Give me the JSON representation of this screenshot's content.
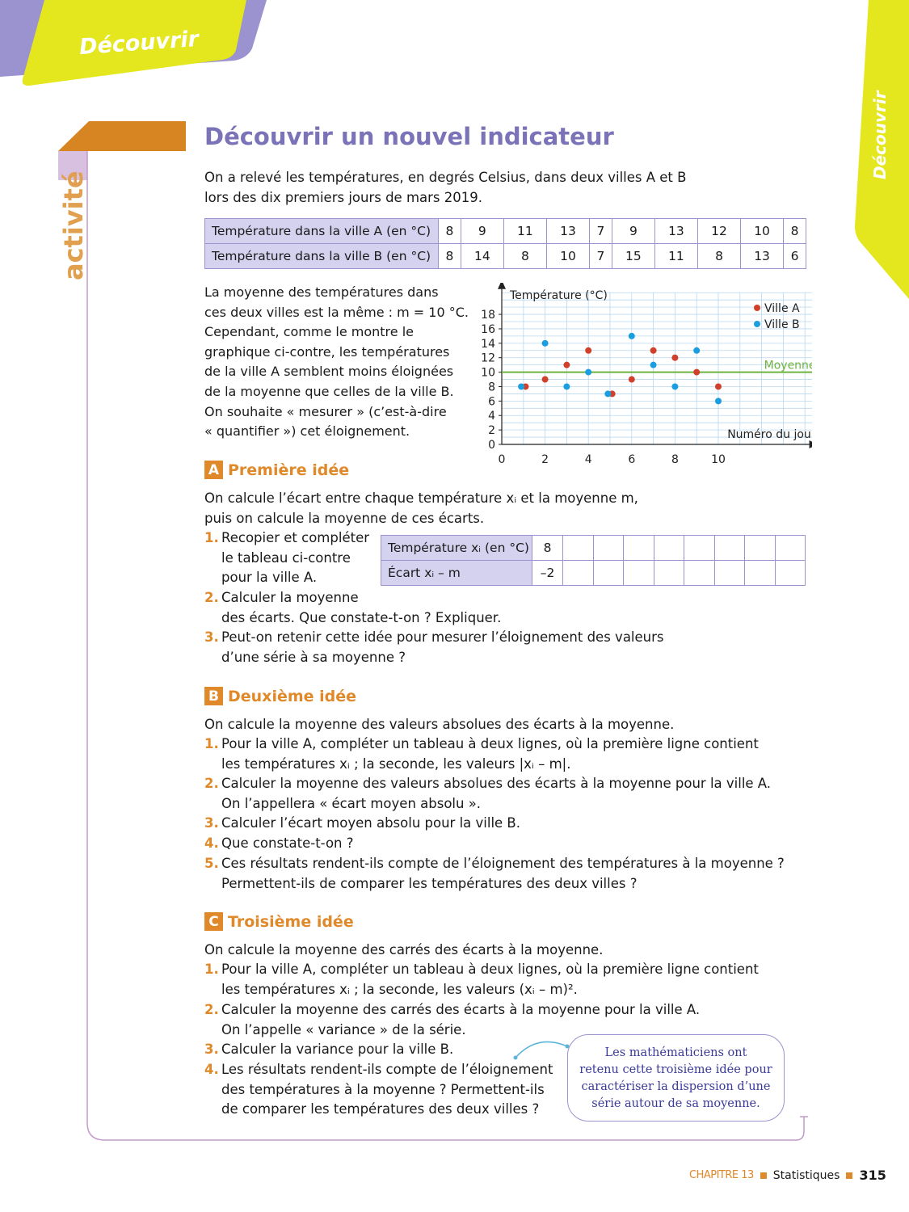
{
  "banner": {
    "label": "Découvrir",
    "side_label": "Découvrir",
    "side_tag": "activité"
  },
  "title": "Découvrir un nouvel indicateur",
  "intro": [
    "On a relevé les températures, en degrés Celsius, dans deux villes A et B",
    "lors des dix premiers jours de mars 2019."
  ],
  "table1": {
    "rows": [
      {
        "label": "Température dans la ville A (en °C)",
        "values": [
          "8",
          "9",
          "11",
          "13",
          "7",
          "9",
          "13",
          "12",
          "10",
          "8"
        ]
      },
      {
        "label": "Température dans la ville B (en °C)",
        "values": [
          "8",
          "14",
          "8",
          "10",
          "7",
          "15",
          "11",
          "8",
          "13",
          "6"
        ]
      }
    ]
  },
  "paragraph": [
    "La moyenne des températures dans",
    "ces deux villes est la même : m = 10 °C.",
    "Cependant, comme le montre le",
    "graphique ci-contre, les températures",
    "de la ville A semblent moins éloignées",
    "de la moyenne que celles de la ville B.",
    "On souhaite « mesurer » (c’est-à-dire",
    "« quantifier ») cet éloignement."
  ],
  "chart_data": {
    "type": "scatter",
    "ylabel": "Température (°C)",
    "xlabel": "Numéro du jour",
    "xlim": [
      0,
      14
    ],
    "ylim": [
      0,
      20
    ],
    "xticks": [
      "0",
      "2",
      "4",
      "6",
      "8",
      "10"
    ],
    "yticks": [
      "0",
      "2",
      "4",
      "6",
      "8",
      "10",
      "12",
      "14",
      "16",
      "18"
    ],
    "grid": true,
    "legend": "top-right",
    "x": [
      1,
      2,
      3,
      4,
      5,
      6,
      7,
      8,
      9,
      10
    ],
    "series": [
      {
        "name": "Ville A",
        "color": "#d0402a",
        "values": [
          8,
          9,
          11,
          13,
          7,
          9,
          13,
          12,
          10,
          8
        ]
      },
      {
        "name": "Ville B",
        "color": "#1a9ee0",
        "values": [
          8,
          14,
          8,
          10,
          7,
          15,
          11,
          8,
          13,
          6
        ]
      }
    ],
    "reference_line": {
      "label": "Moyenne",
      "y": 10,
      "color": "#6db33f"
    }
  },
  "sectionA": {
    "badge": "A",
    "title": "Première idée",
    "lines": [
      "On calcule l’écart entre chaque température xᵢ et la moyenne m,",
      "puis on calcule la moyenne de ces écarts."
    ],
    "items": [
      {
        "num": "1.",
        "lines": [
          "Recopier et compléter",
          "le tableau ci-contre",
          "pour la ville A."
        ]
      },
      {
        "num": "2.",
        "lines": [
          "Calculer la moyenne",
          "des écarts. Que constate-t-on ? Expliquer."
        ]
      },
      {
        "num": "3.",
        "lines": [
          "Peut-on retenir cette idée pour mesurer l’éloignement des valeurs",
          "d’une série à sa moyenne ?"
        ]
      }
    ],
    "table": {
      "rows": [
        {
          "label": "Température xᵢ (en °C)",
          "value": "8"
        },
        {
          "label": "Écart xᵢ – m",
          "value": "–2"
        }
      ]
    }
  },
  "sectionB": {
    "badge": "B",
    "title": "Deuxième idée",
    "lines": [
      "On calcule la moyenne des valeurs absolues des écarts à la moyenne."
    ],
    "items": [
      {
        "num": "1.",
        "lines": [
          "Pour la ville A, compléter un tableau à deux lignes, où la première ligne contient",
          "les températures xᵢ ; la seconde, les valeurs |xᵢ – m|."
        ]
      },
      {
        "num": "2.",
        "lines": [
          "Calculer la moyenne des valeurs absolues des écarts à la moyenne pour la ville A.",
          "On l’appellera « écart moyen absolu »."
        ]
      },
      {
        "num": "3.",
        "lines": [
          "Calculer l’écart moyen absolu pour la ville B."
        ]
      },
      {
        "num": "4.",
        "lines": [
          "Que constate-t-on ?"
        ]
      },
      {
        "num": "5.",
        "lines": [
          "Ces résultats rendent-ils compte de l’éloignement des températures à la moyenne ?",
          "Permettent-ils de comparer les températures des deux villes ?"
        ]
      }
    ]
  },
  "sectionC": {
    "badge": "C",
    "title": "Troisième idée",
    "lines": [
      "On calcule la moyenne des carrés des écarts à la moyenne."
    ],
    "items": [
      {
        "num": "1.",
        "lines": [
          "Pour la ville A, compléter un tableau à deux lignes, où la première ligne contient",
          "les températures xᵢ ; la seconde, les valeurs (xᵢ – m)²."
        ]
      },
      {
        "num": "2.",
        "lines": [
          "Calculer la moyenne des carrés des écarts à la moyenne pour la ville A.",
          "On l’appelle « variance » de la série."
        ]
      },
      {
        "num": "3.",
        "lines": [
          "Calculer la variance pour la ville B."
        ]
      },
      {
        "num": "4.",
        "lines": [
          "Les résultats rendent-ils compte de l’éloignement",
          "des températures à la moyenne ? Permettent-ils",
          "de comparer les températures des deux villes ?"
        ]
      }
    ]
  },
  "bubble": [
    "Les mathématiciens ont",
    "retenu cette troisième idée pour",
    "caractériser la dispersion d’une",
    "série autour de sa moyenne."
  ],
  "footer": {
    "chapter": "CHAPITRE 13",
    "topic": "Statistiques",
    "page": "315"
  },
  "colors": {
    "accent": "#e0892a",
    "title": "#7b73b8",
    "banner": "#e4e61e",
    "lavender": "#9a93cf"
  }
}
